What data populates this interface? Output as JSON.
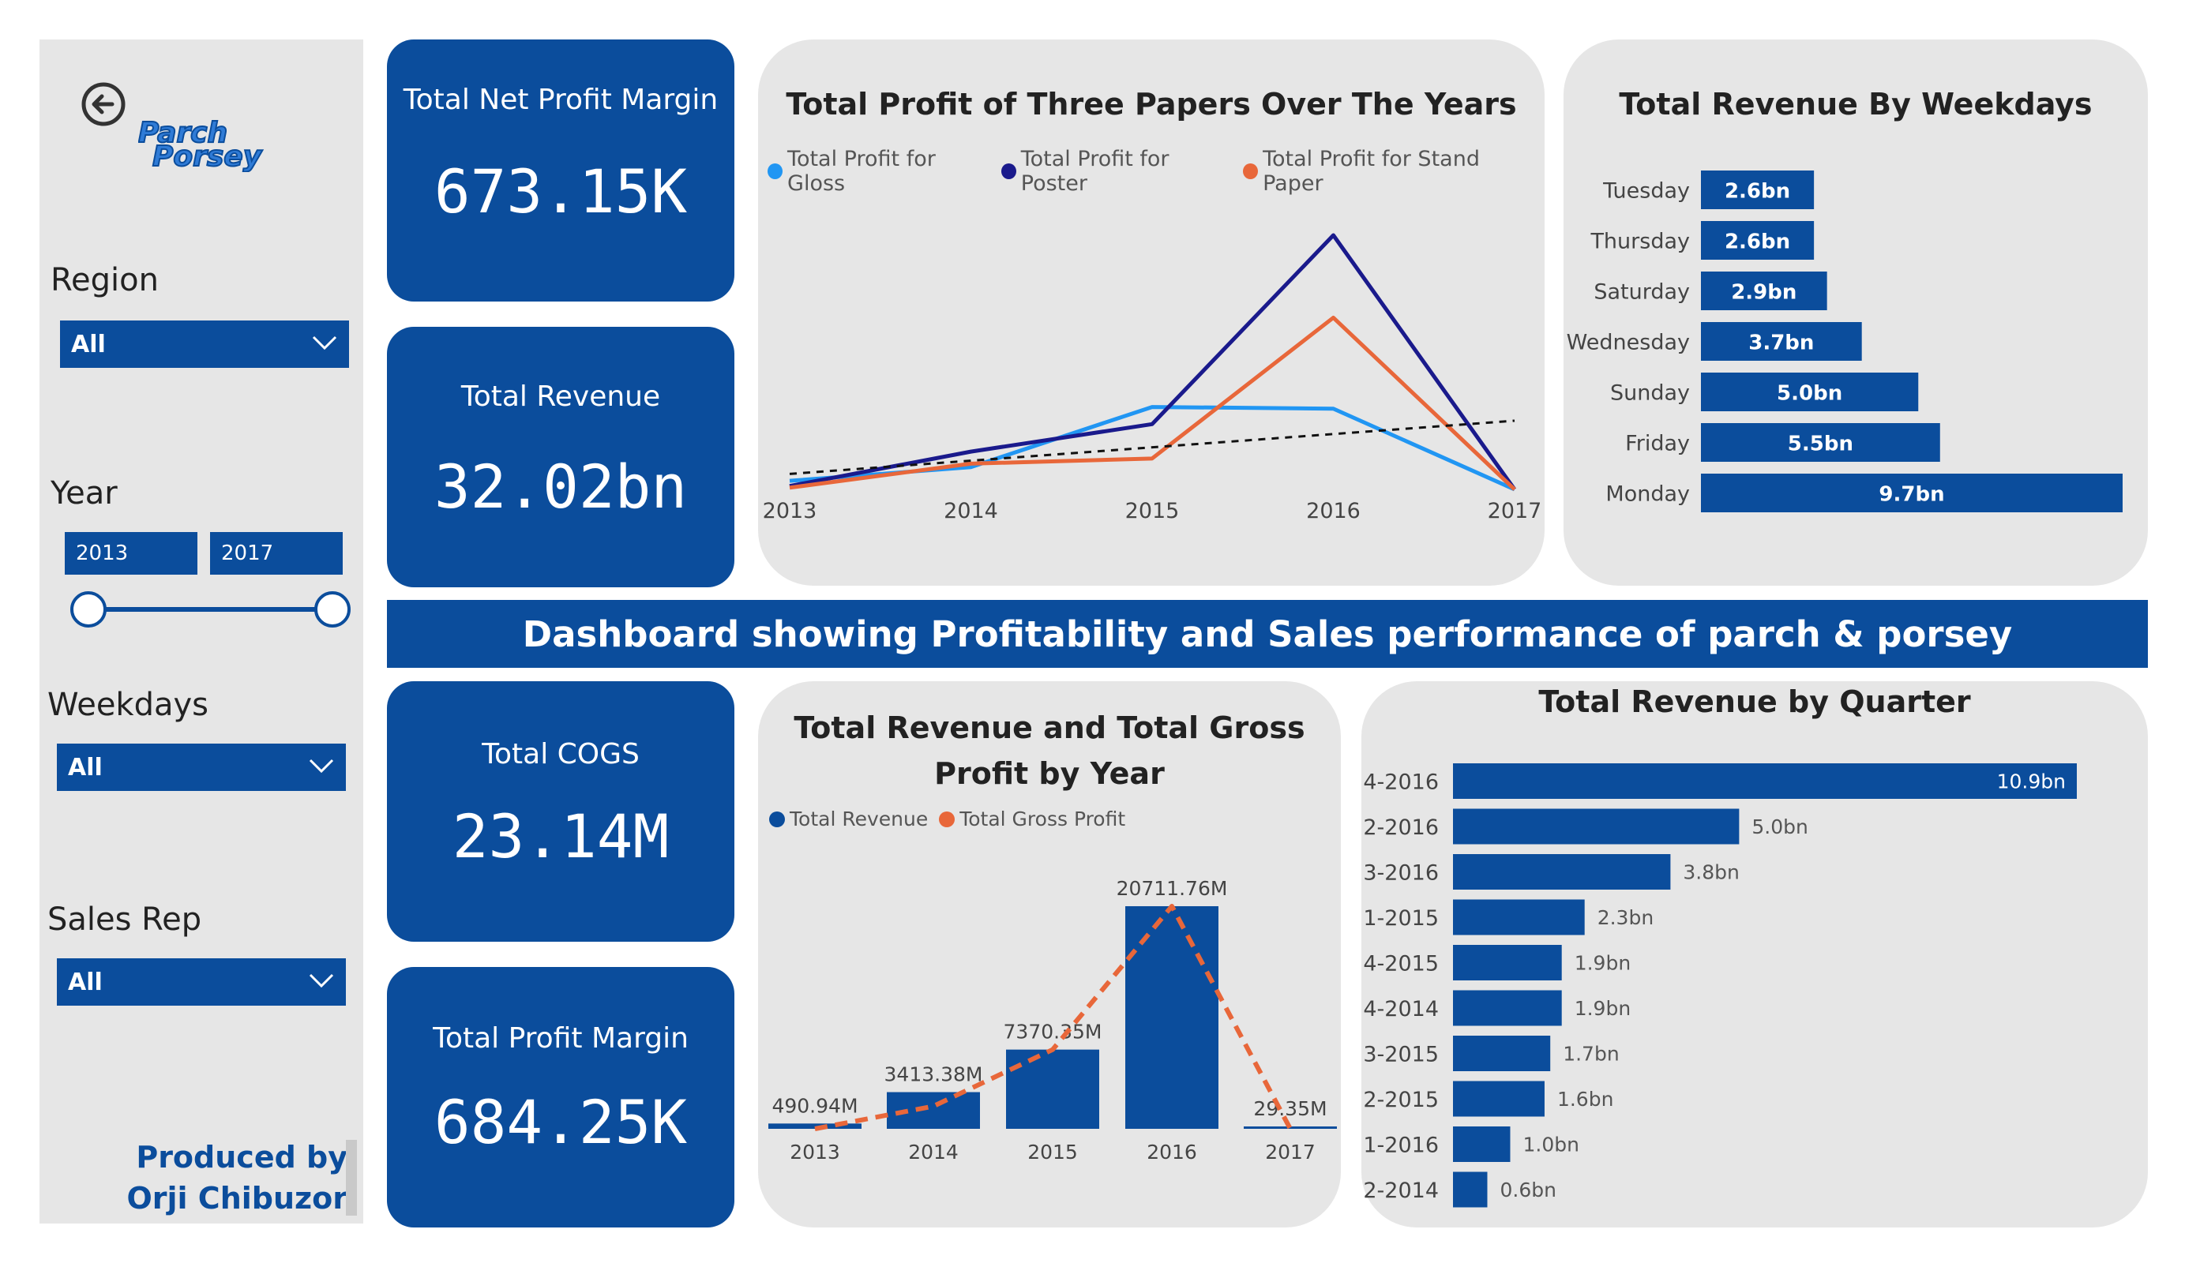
{
  "sidebar": {
    "filters": {
      "region": {
        "label": "Region",
        "value": "All"
      },
      "year": {
        "label": "Year",
        "start": "2013",
        "end": "2017"
      },
      "weekdays": {
        "label": "Weekdays",
        "value": "All"
      },
      "sales_rep": {
        "label": "Sales Rep",
        "value": "All"
      }
    },
    "produced_by": [
      "Produced by",
      "Orji Chibuzor"
    ]
  },
  "cards": {
    "net_profit_margin": {
      "title": "Total Net Profit Margin",
      "value": "673.15K"
    },
    "revenue": {
      "title": "Total Revenue",
      "value": "32.02bn"
    },
    "cogs": {
      "title": "Total COGS",
      "value": "23.14M"
    },
    "profit_margin": {
      "title": "Total Profit Margin",
      "value": "684.25K"
    }
  },
  "banner": "Dashboard showing Profitability and Sales performance of parch & porsey",
  "colors": {
    "blue": "#0b4d9c",
    "gloss": "#2196f3",
    "poster": "#1a1a8c",
    "stand": "#e8673a",
    "panel": "#e6e6e6"
  },
  "icons": [
    "back-arrow-icon",
    "chevron-down-icon"
  ],
  "chart_data": [
    {
      "type": "line",
      "title": "Total Profit of Three Papers Over The Years",
      "x": [
        "2013",
        "2014",
        "2015",
        "2016",
        "2017"
      ],
      "ylim": [
        0,
        100
      ],
      "series": [
        {
          "name": "Total Profit for Gloss",
          "color": "#2196f3",
          "values": [
            5,
            13,
            48,
            47,
            0
          ]
        },
        {
          "name": "Total Profit for Poster",
          "color": "#1a1a8c",
          "values": [
            2,
            22,
            38,
            148,
            0
          ]
        },
        {
          "name": "Total Profit for Stand Paper",
          "color": "#e8673a",
          "values": [
            1,
            15,
            18,
            100,
            0
          ]
        }
      ],
      "trendline": true,
      "grid": false,
      "legend": "top"
    },
    {
      "type": "bar",
      "title": "Total Revenue By Weekdays",
      "orientation": "horizontal",
      "categories": [
        "Tuesday",
        "Thursday",
        "Saturday",
        "Wednesday",
        "Sunday",
        "Friday",
        "Monday"
      ],
      "values": [
        2.6,
        2.6,
        2.9,
        3.7,
        5.0,
        5.5,
        9.7
      ],
      "labels": [
        "2.6bn",
        "2.6bn",
        "2.9bn",
        "3.7bn",
        "5.0bn",
        "5.5bn",
        "9.7bn"
      ]
    },
    {
      "type": "bar",
      "title": "Total Revenue and Total Gross Profit by Year",
      "categories": [
        "2013",
        "2014",
        "2015",
        "2016",
        "2017"
      ],
      "ylim": [
        0,
        24000
      ],
      "series": [
        {
          "name": "Total Revenue",
          "color": "#0b4d9c",
          "kind": "bar",
          "values": [
            490.94,
            3413.38,
            7370.35,
            20711.76,
            29.35
          ],
          "labels": [
            "490.94M",
            "3413.38M",
            "7370.35M",
            "20711.76M",
            "29.35M"
          ]
        },
        {
          "name": "Total Gross Profit",
          "color": "#e8673a",
          "kind": "line-dashed",
          "values": [
            0,
            2100,
            7370.35,
            20711.76,
            0
          ]
        }
      ],
      "legend": "top-left"
    },
    {
      "type": "bar",
      "title": "Total Revenue by Quarter",
      "orientation": "horizontal",
      "categories": [
        "4-2016",
        "2-2016",
        "3-2016",
        "1-2015",
        "4-2015",
        "4-2014",
        "3-2015",
        "2-2015",
        "1-2016",
        "2-2014"
      ],
      "values": [
        10.9,
        5.0,
        3.8,
        2.3,
        1.9,
        1.9,
        1.7,
        1.6,
        1.0,
        0.6
      ],
      "labels": [
        "10.9bn",
        "5.0bn",
        "3.8bn",
        "2.3bn",
        "1.9bn",
        "1.9bn",
        "1.7bn",
        "1.6bn",
        "1.0bn",
        "0.6bn"
      ]
    }
  ]
}
